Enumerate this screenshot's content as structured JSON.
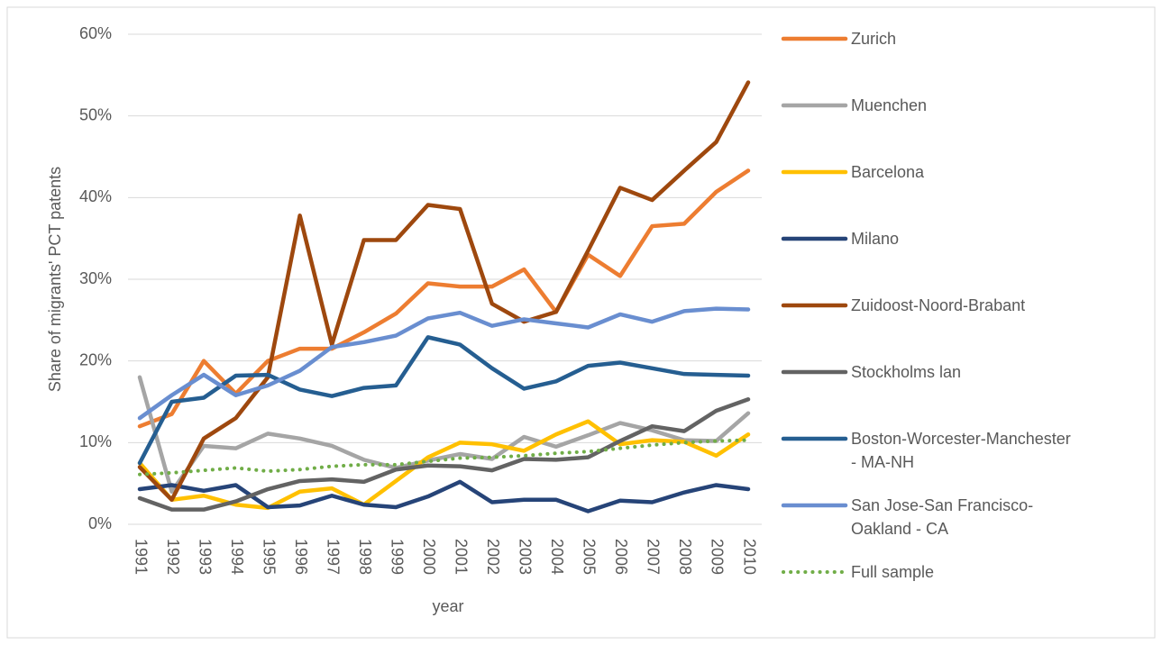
{
  "chart_data": {
    "type": "line",
    "x_label": "year",
    "y_label": "Share of migrants' PCT patents",
    "categories": [
      "1991",
      "1992",
      "1993",
      "1994",
      "1995",
      "1996",
      "1997",
      "1998",
      "1999",
      "2000",
      "2001",
      "2002",
      "2003",
      "2004",
      "2005",
      "2006",
      "2007",
      "2008",
      "2009",
      "2010"
    ],
    "ylim": [
      0,
      60
    ],
    "yticks": [
      {
        "value": 0,
        "label": "0%"
      },
      {
        "value": 10,
        "label": "10%"
      },
      {
        "value": 20,
        "label": "20%"
      },
      {
        "value": 30,
        "label": "30%"
      },
      {
        "value": 40,
        "label": "40%"
      },
      {
        "value": 50,
        "label": "50%"
      },
      {
        "value": 60,
        "label": "60%"
      }
    ],
    "grid": true,
    "legend_position": "right",
    "series": [
      {
        "name": "Zurich",
        "color": "#ED7D31",
        "values": [
          12,
          13.5,
          20,
          16,
          20,
          21.5,
          21.5,
          23.5,
          25.8,
          29.5,
          29.1,
          29.1,
          31.2,
          26,
          33,
          30.4,
          36.5,
          36.8,
          40.7,
          43.3
        ]
      },
      {
        "name": "Muenchen",
        "color": "#A5A5A5",
        "values": [
          18,
          4,
          9.6,
          9.3,
          11.1,
          10.5,
          9.6,
          7.9,
          6.9,
          7.8,
          8.6,
          8,
          10.7,
          9.5,
          10.9,
          12.4,
          11.5,
          10.3,
          10.2,
          13.6
        ]
      },
      {
        "name": "Barcelona",
        "color": "#FFC000",
        "values": [
          7.5,
          3,
          3.5,
          2.4,
          2,
          4,
          4.4,
          2.4,
          5.3,
          8.2,
          10,
          9.8,
          9,
          11,
          12.6,
          9.8,
          10.3,
          10.1,
          8.4,
          11
        ]
      },
      {
        "name": "Milano",
        "color": "#264478",
        "values": [
          4.3,
          4.8,
          4.1,
          4.8,
          2.1,
          2.3,
          3.5,
          2.4,
          2.1,
          3.4,
          5.2,
          2.7,
          3,
          3,
          1.6,
          2.9,
          2.7,
          3.9,
          4.8,
          4.3
        ]
      },
      {
        "name": "Zuidoost-Noord-Brabant",
        "color": "#9E480E",
        "values": [
          7,
          3,
          10.5,
          13,
          18,
          37.8,
          22,
          34.8,
          34.8,
          39.1,
          38.6,
          27,
          24.8,
          26,
          33.5,
          41.2,
          39.7,
          43.3,
          46.8,
          54.1
        ]
      },
      {
        "name": "Stockholms lan",
        "color": "#636363",
        "values": [
          3.2,
          1.8,
          1.8,
          2.8,
          4.3,
          5.3,
          5.5,
          5.2,
          6.7,
          7.2,
          7.1,
          6.6,
          8,
          7.9,
          8.2,
          10.2,
          12,
          11.4,
          13.9,
          15.3
        ]
      },
      {
        "name": "Boston-Worcester-Manchester - MA-NH",
        "color": "#255E91",
        "values": [
          7.5,
          15,
          15.5,
          18.2,
          18.3,
          16.5,
          15.7,
          16.7,
          17,
          22.9,
          22,
          19.1,
          16.6,
          17.5,
          19.4,
          19.8,
          19.1,
          18.4,
          18.3,
          18.2
        ]
      },
      {
        "name": "San Jose-San Francisco-Oakland - CA",
        "color": "#698ED0",
        "values": [
          13,
          15.8,
          18.3,
          15.8,
          17,
          18.8,
          21.7,
          22.3,
          23.1,
          25.2,
          25.9,
          24.3,
          25.1,
          24.6,
          24.1,
          25.7,
          24.8,
          26.1,
          26.4,
          26.3
        ]
      },
      {
        "name": "Full sample",
        "color": "#70AD47",
        "dashed": true,
        "values": [
          6.1,
          6.3,
          6.6,
          6.9,
          6.5,
          6.7,
          7.1,
          7.3,
          7.3,
          7.7,
          8.1,
          8.2,
          8.4,
          8.7,
          8.9,
          9.3,
          9.7,
          10,
          10.2,
          10.3
        ]
      }
    ]
  }
}
